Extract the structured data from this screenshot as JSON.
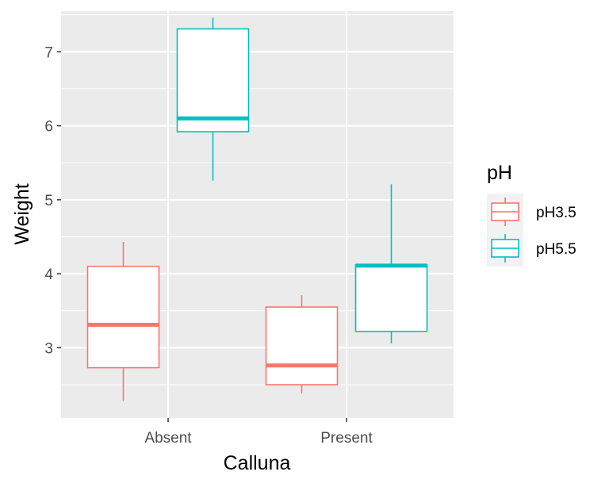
{
  "chart_data": {
    "type": "boxplot",
    "xlabel": "Calluna",
    "ylabel": "Weight",
    "categories": [
      "Absent",
      "Present"
    ],
    "ylim": [
      2.05,
      7.55
    ],
    "yticks": [
      3,
      4,
      5,
      6,
      7
    ],
    "grid": true,
    "legend": {
      "title": "pH",
      "position": "right",
      "entries": [
        "pH3.5",
        "pH5.5"
      ]
    },
    "series": [
      {
        "name": "pH3.5",
        "color": "#F8766D",
        "boxes": [
          {
            "category": "Absent",
            "min": 2.28,
            "q1": 2.73,
            "median": 3.31,
            "q3": 4.1,
            "max": 4.43
          },
          {
            "category": "Present",
            "min": 2.38,
            "q1": 2.5,
            "median": 2.76,
            "q3": 3.55,
            "max": 3.71
          }
        ]
      },
      {
        "name": "pH5.5",
        "color": "#00BFC4",
        "boxes": [
          {
            "category": "Absent",
            "min": 5.26,
            "q1": 5.92,
            "median": 6.1,
            "q3": 7.31,
            "max": 7.46
          },
          {
            "category": "Present",
            "min": 3.06,
            "q1": 3.22,
            "median": 4.11,
            "q3": 4.12,
            "max": 5.21
          }
        ]
      }
    ]
  }
}
